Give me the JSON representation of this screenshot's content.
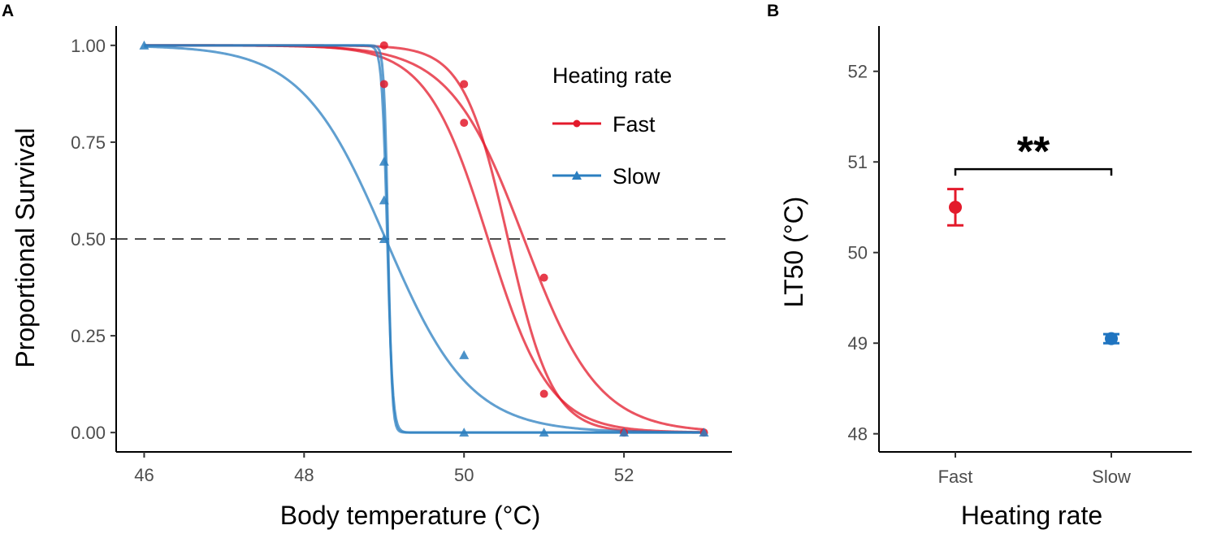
{
  "chart_data": [
    {
      "panel": "A",
      "type": "line",
      "xlabel": "Body temperature (°C)",
      "ylabel": "Proportional Survival",
      "xlim": [
        45.65,
        53.35
      ],
      "ylim": [
        -0.05,
        1.05
      ],
      "xticks": [
        46,
        48,
        50,
        52
      ],
      "yticks": [
        0.0,
        0.25,
        0.5,
        0.75,
        1.0
      ],
      "ytick_labels": [
        "0.00",
        "0.25",
        "0.50",
        "0.75",
        "1.00"
      ],
      "reference_line": {
        "y": 0.5,
        "style": "dashed"
      },
      "legend": {
        "title": "Heating rate",
        "entries": [
          "Fast",
          "Slow"
        ],
        "placement": "top-right"
      },
      "colors": {
        "Fast": "#e31a2b",
        "Slow": "#2b7fc0"
      },
      "series": [
        {
          "name": "Fast",
          "curves": [
            {
              "lt50": 50.55,
              "slope": 3.6
            },
            {
              "lt50": 50.3,
              "slope": 2.6
            },
            {
              "lt50": 50.75,
              "slope": 2.15
            }
          ],
          "points": [
            {
              "x": 49,
              "y": 1.0
            },
            {
              "x": 49,
              "y": 0.9
            },
            {
              "x": 50,
              "y": 0.9
            },
            {
              "x": 50,
              "y": 0.8
            },
            {
              "x": 51,
              "y": 0.4
            },
            {
              "x": 51,
              "y": 0.1
            },
            {
              "x": 52,
              "y": 0.0
            },
            {
              "x": 53,
              "y": 0.0
            }
          ]
        },
        {
          "name": "Slow",
          "curves": [
            {
              "lt50": 49.02,
              "slope": 1.9
            },
            {
              "lt50": 49.04,
              "slope": 30
            },
            {
              "lt50": 49.05,
              "slope": 40
            }
          ],
          "points": [
            {
              "x": 46,
              "y": 1.0
            },
            {
              "x": 49,
              "y": 0.7
            },
            {
              "x": 49,
              "y": 0.6
            },
            {
              "x": 49,
              "y": 0.5
            },
            {
              "x": 50,
              "y": 0.2
            },
            {
              "x": 50,
              "y": 0.0
            },
            {
              "x": 51,
              "y": 0.0
            },
            {
              "x": 52,
              "y": 0.0
            },
            {
              "x": 53,
              "y": 0.0
            }
          ]
        }
      ]
    },
    {
      "panel": "B",
      "type": "scatter",
      "xlabel": "Heating rate",
      "ylabel": "LT50 (°C)",
      "categories": [
        "Fast",
        "Slow"
      ],
      "ylim": [
        47.8,
        52.5
      ],
      "yticks": [
        48,
        49,
        50,
        51,
        52
      ],
      "series": [
        {
          "name": "Fast",
          "value": 50.5,
          "error_low": 50.3,
          "error_high": 50.7
        },
        {
          "name": "Slow",
          "value": 49.05,
          "error_low": 49.0,
          "error_high": 49.1
        }
      ],
      "significance": {
        "label": "**",
        "between": [
          "Fast",
          "Slow"
        ],
        "y": 50.92
      }
    }
  ]
}
